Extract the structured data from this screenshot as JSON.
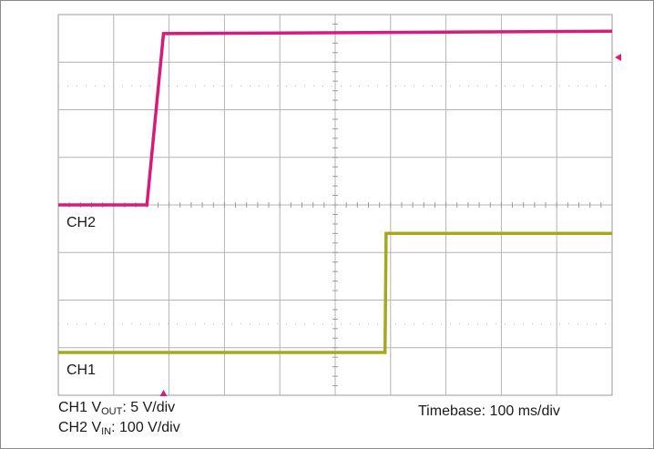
{
  "chart_data": {
    "type": "line",
    "grid": true,
    "xlim": [
      0,
      1000
    ],
    "ylim": [
      -4,
      4
    ],
    "x_unit": "ms",
    "y_unit": "div",
    "series": [
      {
        "name": "CH2",
        "color": "#d81b7b",
        "x": [
          0,
          160,
          190,
          1000
        ],
        "y": [
          0,
          0,
          3.6,
          3.65
        ]
      },
      {
        "name": "CH1",
        "color": "#a8a81e",
        "x": [
          0,
          590,
          592,
          1000
        ],
        "y": [
          -3.1,
          -3.1,
          -0.6,
          -0.6
        ]
      }
    ],
    "annotations": {
      "ch1_prefix": "CH1 V",
      "ch1_sub": "OUT",
      "ch1_scale": ": 5 V/div",
      "ch2_prefix": "CH2 V",
      "ch2_sub": "IN",
      "ch2_scale": ": 100 V/div",
      "timebase": "Timebase: 100 ms/div"
    }
  }
}
